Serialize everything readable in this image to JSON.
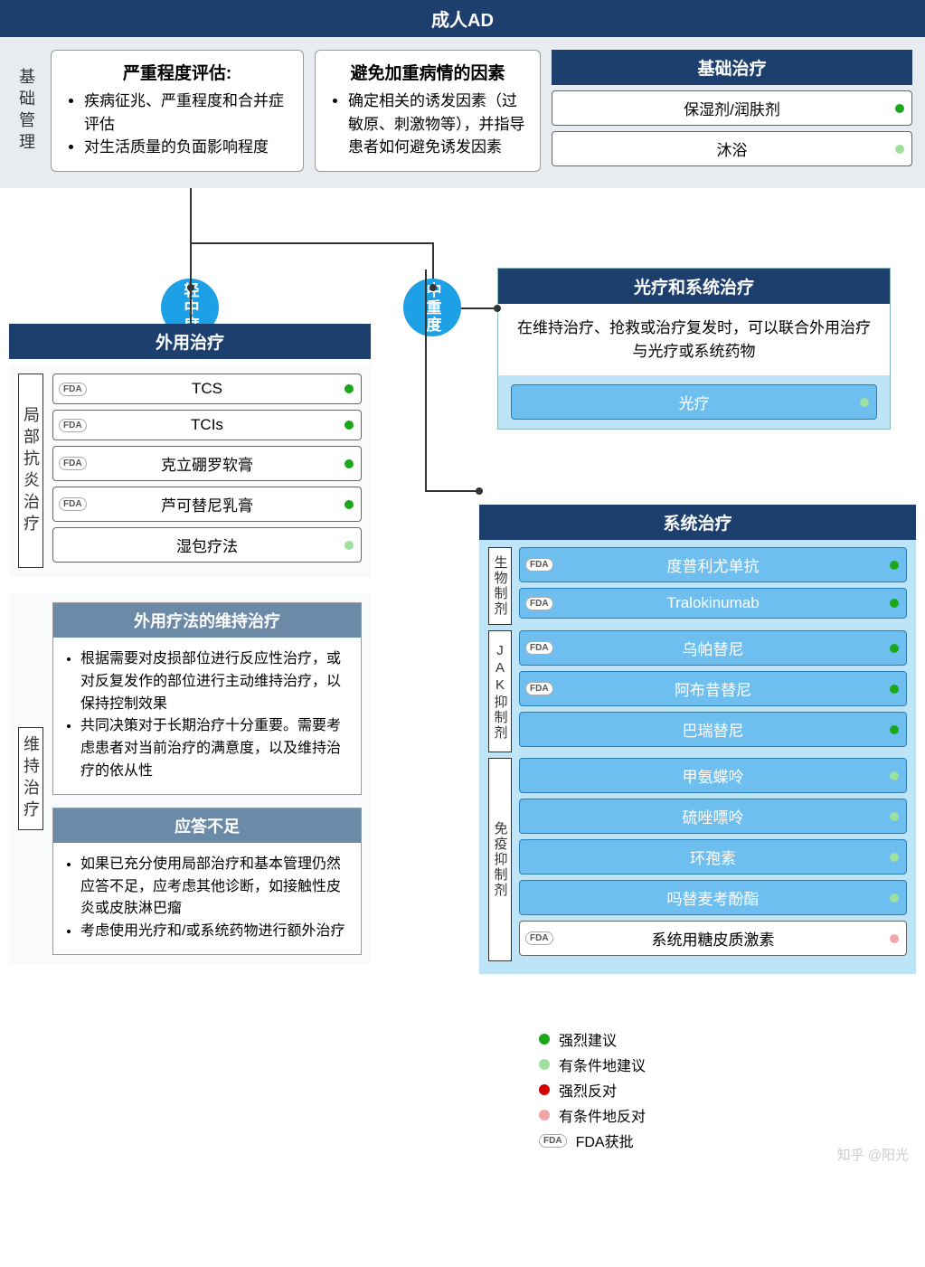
{
  "colors": {
    "header_bg": "#1c3f6e",
    "subheader_bg": "#6b8aa8",
    "circle_blue": "#1ea0e6",
    "pill_blue": "#6ebfef",
    "gray_bg": "#e8ebef",
    "light_bg": "#f9fafc",
    "phototherapy_panel": "#bde4f7",
    "dot_strong_rec": "#1aa81a",
    "dot_cond_rec": "#9fe09f",
    "dot_strong_opp": "#d40000",
    "dot_cond_opp": "#f2a6a6"
  },
  "title": "成人AD",
  "basic_mgmt": {
    "label": "基础管理",
    "severity": {
      "title": "严重程度评估:",
      "items": [
        "疾病征兆、严重程度和合并症评估",
        "对生活质量的负面影响程度"
      ]
    },
    "avoid": {
      "title": "避免加重病情的因素",
      "items": [
        "确定相关的诱发因素（过敏原、刺激物等），并指导患者如何避免诱发因素"
      ]
    },
    "basic_tx": {
      "title": "基础治疗",
      "items": [
        {
          "label": "保湿剂/润肤剂",
          "dot": "dot_strong_rec"
        },
        {
          "label": "沐浴",
          "dot": "dot_cond_rec"
        }
      ]
    }
  },
  "branches": {
    "mild": "轻中度",
    "severe": "中重度"
  },
  "topical": {
    "header": "外用治疗",
    "anti_inflam_label": "局部抗炎治疗",
    "items": [
      {
        "label": "TCS",
        "fda": true,
        "dot": "dot_strong_rec"
      },
      {
        "label": "TCIs",
        "fda": true,
        "dot": "dot_strong_rec"
      },
      {
        "label": "克立硼罗软膏",
        "fda": true,
        "dot": "dot_strong_rec"
      },
      {
        "label": "芦可替尼乳膏",
        "fda": true,
        "dot": "dot_strong_rec"
      },
      {
        "label": "湿包疗法",
        "fda": false,
        "dot": "dot_cond_rec"
      }
    ]
  },
  "maintenance": {
    "label": "维持治疗",
    "maint_header": "外用疗法的维持治疗",
    "maint_items": [
      "根据需要对皮损部位进行反应性治疗，或对反复发作的部位进行主动维持治疗，以保持控制效果",
      "共同决策对于长期治疗十分重要。需要考虑患者对当前治疗的满意度，以及维持治疗的依从性"
    ],
    "inad_header": "应答不足",
    "inad_items": [
      "如果已充分使用局部治疗和基本管理仍然应答不足，应考虑其他诊断，如接触性皮炎或皮肤淋巴瘤",
      "考虑使用光疗和/或系统药物进行额外治疗"
    ]
  },
  "phototherapy": {
    "header": "光疗和系统治疗",
    "desc": "在维持治疗、抢救或治疗复发时，可以联合外用治疗与光疗或系统药物",
    "item": {
      "label": "光疗",
      "dot": "dot_cond_rec"
    }
  },
  "systemic": {
    "header": "系统治疗",
    "groups": [
      {
        "label": "生物制剂",
        "items": [
          {
            "label": "度普利尤单抗",
            "fda": true,
            "dot": "dot_strong_rec",
            "blue": true
          },
          {
            "label": "Tralokinumab",
            "fda": true,
            "dot": "dot_strong_rec",
            "blue": true
          }
        ]
      },
      {
        "label": "JAK抑制剂",
        "items": [
          {
            "label": "乌帕替尼",
            "fda": true,
            "dot": "dot_strong_rec",
            "blue": true
          },
          {
            "label": "阿布昔替尼",
            "fda": true,
            "dot": "dot_strong_rec",
            "blue": true
          },
          {
            "label": "巴瑞替尼",
            "fda": false,
            "dot": "dot_strong_rec",
            "blue": true
          }
        ]
      },
      {
        "label": "免疫抑制剂",
        "items": [
          {
            "label": "甲氨蝶呤",
            "fda": false,
            "dot": "dot_cond_rec",
            "blue": true
          },
          {
            "label": "硫唑嘌呤",
            "fda": false,
            "dot": "dot_cond_rec",
            "blue": true
          },
          {
            "label": "环孢素",
            "fda": false,
            "dot": "dot_cond_rec",
            "blue": true
          },
          {
            "label": "吗替麦考酚酯",
            "fda": false,
            "dot": "dot_cond_rec",
            "blue": true
          },
          {
            "label": "系统用糖皮质激素",
            "fda": true,
            "dot": "dot_cond_opp",
            "blue": false
          }
        ]
      }
    ]
  },
  "legend": {
    "items": [
      {
        "color": "dot_strong_rec",
        "label": "强烈建议"
      },
      {
        "color": "dot_cond_rec",
        "label": "有条件地建议"
      },
      {
        "color": "dot_strong_opp",
        "label": "强烈反对"
      },
      {
        "color": "dot_cond_opp",
        "label": "有条件地反对"
      }
    ],
    "fda_label": "FDA获批"
  },
  "watermark": "知乎 @阳光"
}
